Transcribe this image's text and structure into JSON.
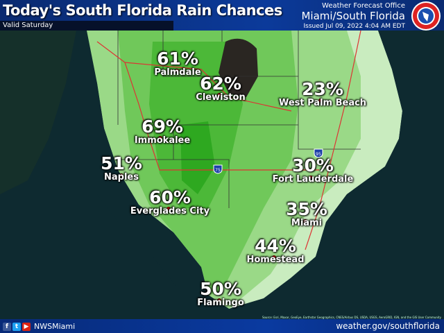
{
  "header": {
    "title": "Today's South Florida Rain Chances",
    "valid": "Valid Saturday",
    "office_line1": "Weather Forecast Office",
    "office_line2": "Miami/South Florida",
    "issued": "Issued Jul 09, 2022 4:04 AM EDT",
    "logo_text": "NATIONAL WEATHER SERVICE"
  },
  "colors": {
    "header_bg": "#0b3a9a",
    "low_chance": "#c9ecbf",
    "mid_chance": "#8fd47e",
    "high_chance": "#5cbf45",
    "highest_chance": "#2faa20",
    "lake": "#2a2622",
    "ocean": "#0d2a2e",
    "city_dot": "#e01010"
  },
  "locations": [
    {
      "name": "Palmdale",
      "chance": "61%"
    },
    {
      "name": "Clewiston",
      "chance": "62%"
    },
    {
      "name": "West Palm Beach",
      "chance": "23%"
    },
    {
      "name": "Immokalee",
      "chance": "69%"
    },
    {
      "name": "Naples",
      "chance": "51%"
    },
    {
      "name": "Fort Lauderdale",
      "chance": "30%"
    },
    {
      "name": "Everglades City",
      "chance": "60%"
    },
    {
      "name": "Miami",
      "chance": "35%"
    },
    {
      "name": "Homestead",
      "chance": "44%"
    },
    {
      "name": "Flamingo",
      "chance": "50%"
    }
  ],
  "highway_shields": [
    "75",
    "95"
  ],
  "attribution": "Source: Esri, Maxar, GeoEye, Earthstar Geographics, CNES/Airbus DS, USDA, USGS, AeroGRID, IGN, and the GIS User Community",
  "footer": {
    "social_icons": [
      "facebook-icon",
      "twitter-icon",
      "youtube-icon"
    ],
    "handle": "NWSMiami",
    "website": "weather.gov/southflorida"
  }
}
